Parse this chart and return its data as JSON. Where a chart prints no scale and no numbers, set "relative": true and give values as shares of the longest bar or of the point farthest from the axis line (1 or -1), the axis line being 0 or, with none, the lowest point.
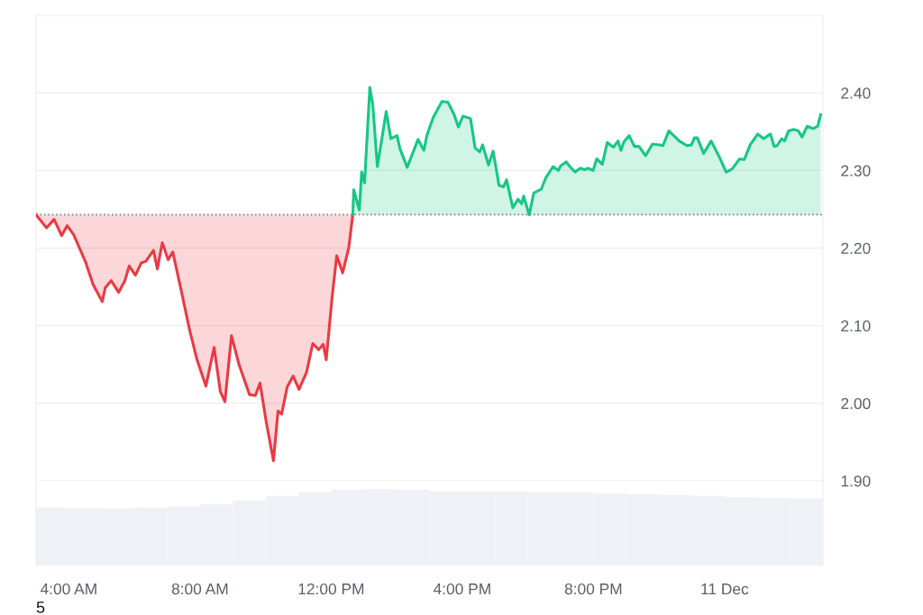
{
  "chart_data": [
    {
      "type": "area",
      "xlim": [
        3,
        27
      ],
      "ylim": [
        1.9,
        2.5
      ],
      "tick_labels": "y",
      "yticks": [
        {
          "value": 1.9,
          "label": "1.90"
        },
        {
          "value": 2.0,
          "label": "2.00"
        },
        {
          "value": 2.1,
          "label": "2.10"
        },
        {
          "value": 2.2,
          "label": "2.20"
        },
        {
          "value": 2.3,
          "label": "2.30"
        },
        {
          "value": 2.4,
          "label": "2.40"
        }
      ],
      "grid": "y",
      "ref_lines": [
        {
          "axis": "y",
          "value": 2.243,
          "color": "#7a7f88",
          "line_style": "dotted"
        }
      ],
      "series": [
        {
          "type": "line",
          "color": "#ea3943",
          "x": [
            3.0,
            3.32,
            3.55,
            3.78,
            3.95,
            4.15,
            4.51,
            4.74,
            5.02,
            5.11,
            5.29,
            5.52,
            5.71,
            5.84,
            6.03,
            6.21,
            6.35,
            6.58,
            6.7,
            6.85,
            7.03,
            7.17,
            7.45,
            7.68,
            7.91,
            8.18,
            8.43,
            8.62,
            8.76,
            8.96,
            9.19,
            9.51,
            9.69,
            9.83,
            10.02,
            10.24,
            10.38,
            10.49,
            10.66,
            10.84,
            11.02,
            11.25,
            11.44,
            11.62,
            11.76,
            11.85,
            12.03,
            12.17,
            12.35,
            12.54,
            12.66
          ],
          "values": [
            2.243,
            2.226,
            2.237,
            2.216,
            2.229,
            2.217,
            2.182,
            2.153,
            2.131,
            2.149,
            2.158,
            2.143,
            2.158,
            2.177,
            2.165,
            2.181,
            2.183,
            2.197,
            2.173,
            2.207,
            2.185,
            2.195,
            2.141,
            2.095,
            2.056,
            2.022,
            2.072,
            2.015,
            2.002,
            2.087,
            2.05,
            2.011,
            2.01,
            2.026,
            1.976,
            1.926,
            1.99,
            1.986,
            2.021,
            2.035,
            2.018,
            2.04,
            2.077,
            2.069,
            2.076,
            2.056,
            2.137,
            2.19,
            2.168,
            2.201,
            2.243
          ]
        },
        {
          "type": "line",
          "color": "#16c784",
          "x": [
            12.66,
            12.69,
            12.86,
            12.93,
            13.02,
            13.18,
            13.27,
            13.41,
            13.68,
            13.82,
            14.01,
            14.1,
            14.32,
            14.65,
            14.83,
            14.92,
            15.11,
            15.38,
            15.56,
            15.75,
            15.88,
            16.02,
            16.25,
            16.39,
            16.53,
            16.62,
            16.8,
            16.94,
            17.12,
            17.26,
            17.35,
            17.54,
            17.7,
            17.81,
            17.87,
            18.04,
            18.18,
            18.41,
            18.54,
            18.77,
            18.93,
            19.0,
            19.17,
            19.28,
            19.44,
            19.6,
            19.74,
            19.83,
            19.99,
            20.1,
            20.27,
            20.42,
            20.61,
            20.75,
            20.84,
            20.93,
            21.09,
            21.25,
            21.39,
            21.59,
            21.8,
            22.03,
            22.12,
            22.3,
            22.62,
            22.85,
            22.99,
            23.08,
            23.17,
            23.36,
            23.59,
            23.82,
            24.05,
            24.23,
            24.46,
            24.6,
            24.78,
            25.01,
            25.19,
            25.4,
            25.51,
            25.6,
            25.74,
            25.83,
            25.95,
            26.11,
            26.25,
            26.36,
            26.52,
            26.7,
            26.84,
            26.93
          ],
          "values": [
            2.243,
            2.275,
            2.249,
            2.298,
            2.284,
            2.407,
            2.385,
            2.305,
            2.376,
            2.341,
            2.345,
            2.328,
            2.304,
            2.34,
            2.326,
            2.345,
            2.368,
            2.389,
            2.388,
            2.372,
            2.356,
            2.37,
            2.367,
            2.329,
            2.324,
            2.333,
            2.307,
            2.325,
            2.281,
            2.279,
            2.288,
            2.252,
            2.263,
            2.257,
            2.267,
            2.243,
            2.271,
            2.276,
            2.29,
            2.305,
            2.3,
            2.306,
            2.311,
            2.305,
            2.298,
            2.303,
            2.301,
            2.303,
            2.3,
            2.315,
            2.308,
            2.336,
            2.33,
            2.338,
            2.326,
            2.337,
            2.345,
            2.331,
            2.331,
            2.319,
            2.334,
            2.333,
            2.332,
            2.351,
            2.338,
            2.332,
            2.333,
            2.342,
            2.342,
            2.322,
            2.338,
            2.319,
            2.298,
            2.302,
            2.315,
            2.314,
            2.333,
            2.347,
            2.341,
            2.347,
            2.331,
            2.332,
            2.341,
            2.338,
            2.351,
            2.353,
            2.351,
            2.343,
            2.357,
            2.354,
            2.357,
            2.372
          ]
        }
      ]
    },
    {
      "type": "bar",
      "relative": true,
      "xlim": [
        3,
        27
      ],
      "tick_labels": "x",
      "xticks": [
        {
          "value": 4,
          "label": "4:00 AM"
        },
        {
          "value": 8,
          "label": "8:00 AM"
        },
        {
          "value": 12,
          "label": "12:00 PM"
        },
        {
          "value": 16,
          "label": "4:00 PM"
        },
        {
          "value": 20,
          "label": "8:00 PM"
        },
        {
          "value": 24,
          "label": "11 Dec"
        }
      ],
      "annotations": [
        "5"
      ],
      "series": [
        {
          "color": "#eef1f5",
          "x": [
            3.5,
            4.5,
            5.5,
            6.5,
            7.5,
            8.5,
            9.5,
            10.5,
            11.5,
            12.5,
            13.5,
            14.5,
            15.5,
            16.5,
            17.5,
            18.5,
            19.5,
            20.5,
            21.5,
            22.5,
            23.5,
            24.5,
            25.5,
            26.5
          ],
          "values": [
            0.76,
            0.75,
            0.745,
            0.755,
            0.77,
            0.8,
            0.85,
            0.91,
            0.96,
            0.99,
            1.0,
            0.99,
            0.97,
            0.965,
            0.965,
            0.963,
            0.955,
            0.945,
            0.93,
            0.92,
            0.91,
            0.895,
            0.885,
            0.875
          ]
        }
      ]
    }
  ]
}
